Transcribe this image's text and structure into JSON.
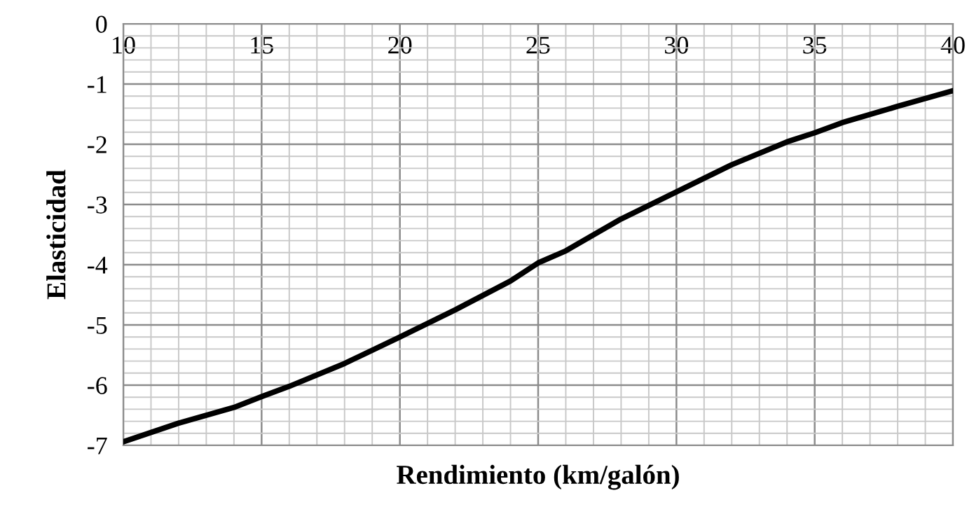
{
  "chart_data": {
    "type": "line",
    "xlabel": "Rendimiento (km/galón)",
    "ylabel": "Elasticidad",
    "x": [
      10,
      12,
      14,
      15,
      16,
      18,
      20,
      22,
      24,
      25,
      26,
      28,
      30,
      32,
      34,
      35,
      36,
      38,
      40
    ],
    "series": [
      {
        "color": "#000000",
        "values": [
          -6.94,
          -6.63,
          -6.37,
          -6.19,
          -6.02,
          -5.64,
          -5.2,
          -4.75,
          -4.27,
          -3.97,
          -3.77,
          -3.24,
          -2.79,
          -2.34,
          -1.96,
          -1.81,
          -1.64,
          -1.37,
          -1.11
        ]
      }
    ],
    "xlim": [
      10,
      40
    ],
    "xticks": [
      10,
      15,
      20,
      25,
      30,
      35,
      40
    ],
    "ylim": [
      -7,
      0
    ],
    "yticks": [
      -7,
      -6,
      -5,
      -4,
      -3,
      -2,
      -1,
      0
    ],
    "grid": true,
    "marker": "none",
    "line_style": "solid"
  }
}
